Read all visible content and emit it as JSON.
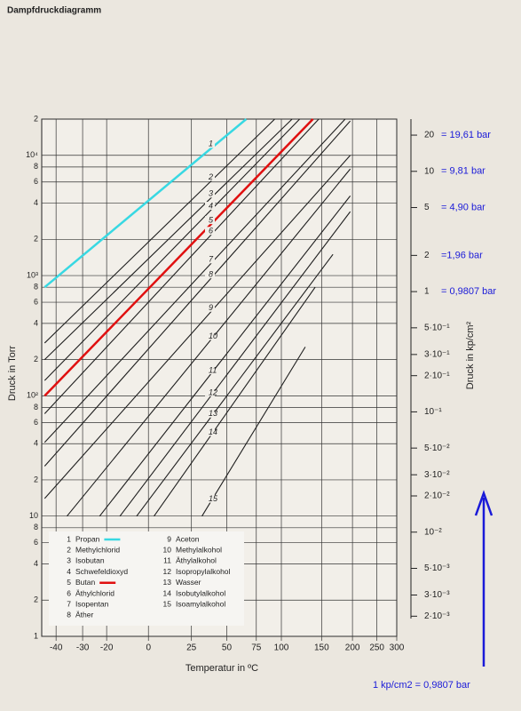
{
  "chart_data": {
    "type": "line",
    "title": "Dampfdruckdiagramm",
    "x_label": "Temperatur in ºC",
    "y_label": "Druck in Torr",
    "y2_label": "Druck in kp/cm²",
    "xscale": "cox",
    "ylog": true,
    "grid": true,
    "xlim": [
      -45,
      300
    ],
    "xticks": [
      -40,
      -30,
      -20,
      0,
      25,
      50,
      75,
      100,
      150,
      200,
      250,
      300
    ],
    "ylim": [
      1,
      20000
    ],
    "yticks": [
      {
        "value": 20000,
        "label": "2"
      },
      {
        "value": 10000,
        "label": "10⁴"
      },
      {
        "value": 8000,
        "label": "8"
      },
      {
        "value": 6000,
        "label": "6"
      },
      {
        "value": 4000,
        "label": "4"
      },
      {
        "value": 2000,
        "label": "2"
      },
      {
        "value": 1000,
        "label": "10³"
      },
      {
        "value": 800,
        "label": "8"
      },
      {
        "value": 600,
        "label": "6"
      },
      {
        "value": 400,
        "label": "4"
      },
      {
        "value": 200,
        "label": "2"
      },
      {
        "value": 100,
        "label": "10²"
      },
      {
        "value": 80,
        "label": "8"
      },
      {
        "value": 60,
        "label": "6"
      },
      {
        "value": 40,
        "label": "4"
      },
      {
        "value": 20,
        "label": "2"
      },
      10,
      8,
      6,
      4,
      2,
      1
    ],
    "y2lim": [
      0.00136,
      27.19
    ],
    "y2ticks": [
      20,
      10,
      5,
      2,
      1,
      {
        "value": 0.5,
        "label": "5·10⁻¹"
      },
      {
        "value": 0.3,
        "label": "3·10⁻¹"
      },
      {
        "value": 0.2,
        "label": "2·10⁻¹"
      },
      {
        "value": 0.1,
        "label": "10⁻¹"
      },
      {
        "value": 0.05,
        "label": "5·10⁻²"
      },
      {
        "value": 0.03,
        "label": "3·10⁻²"
      },
      {
        "value": 0.02,
        "label": "2·10⁻²"
      },
      {
        "value": 0.01,
        "label": "10⁻²"
      },
      {
        "value": 0.005,
        "label": "5·10⁻³"
      },
      {
        "value": 0.003,
        "label": "3·10⁻³"
      },
      {
        "value": 0.002,
        "label": "2·10⁻³"
      }
    ],
    "y2_annotations": [
      "= 19,61 bar",
      "= 9,81 bar",
      "= 4,90 bar",
      "=1,96 bar",
      "= 0,9807 bar"
    ],
    "note": "1 kp/cm2  = 0,9807 bar",
    "series": [
      {
        "label": "1",
        "name": "Propan",
        "color": "#38d8e2",
        "legend_swatch": true,
        "x": [
          -44,
          66
        ],
        "values": [
          800,
          20000
        ]
      },
      {
        "label": "2",
        "name": "Methylchlorid",
        "color": "#1e1e1e",
        "x": [
          -44,
          93
        ],
        "values": [
          275,
          20000
        ]
      },
      {
        "label": "3",
        "name": "Isobutan",
        "color": "#1e1e1e",
        "x": [
          -44,
          112
        ],
        "values": [
          200,
          20000
        ]
      },
      {
        "label": "4",
        "name": "Schwefeldioxyd",
        "color": "#1e1e1e",
        "x": [
          -44,
          121
        ],
        "values": [
          134,
          20000
        ]
      },
      {
        "label": "5",
        "name": "Butan",
        "color": "#e01010",
        "legend_swatch": true,
        "x": [
          -44,
          138
        ],
        "values": [
          100,
          20000
        ]
      },
      {
        "label": "6",
        "name": "Äthylchlorid",
        "color": "#1e1e1e",
        "x": [
          -44,
          146
        ],
        "values": [
          71,
          20000
        ]
      },
      {
        "label": "7",
        "name": "Isopentan",
        "color": "#1e1e1e",
        "x": [
          -44,
          187
        ],
        "values": [
          41,
          20000
        ]
      },
      {
        "label": "8",
        "name": "Äther",
        "color": "#1e1e1e",
        "x": [
          -44,
          196
        ],
        "values": [
          26,
          19300
        ]
      },
      {
        "label": "9",
        "name": "Aceton",
        "color": "#1e1e1e",
        "x": [
          -44,
          196
        ],
        "values": [
          14,
          10000
        ]
      },
      {
        "label": "10",
        "name": "Methylalkohol",
        "color": "#1e1e1e",
        "x": [
          -36,
          196
        ],
        "values": [
          10,
          7700
        ]
      },
      {
        "label": "11",
        "name": "Äthylalkohol",
        "color": "#1e1e1e",
        "x": [
          -23,
          196
        ],
        "values": [
          10,
          4600
        ]
      },
      {
        "label": "12",
        "name": "Isopropylalkohol",
        "color": "#1e1e1e",
        "x": [
          -14,
          196
        ],
        "values": [
          10,
          3400
        ]
      },
      {
        "label": "13",
        "name": "Wasser",
        "color": "#1e1e1e",
        "x": [
          -6,
          167
        ],
        "values": [
          10,
          1500
        ]
      },
      {
        "label": "14",
        "name": "Isobutylalkohol",
        "color": "#1e1e1e",
        "x": [
          3,
          141
        ],
        "values": [
          10,
          800
        ]
      },
      {
        "label": "15",
        "name": "Isoamylalkohol",
        "color": "#1e1e1e",
        "x": [
          32,
          128
        ],
        "values": [
          10,
          255
        ]
      }
    ]
  }
}
